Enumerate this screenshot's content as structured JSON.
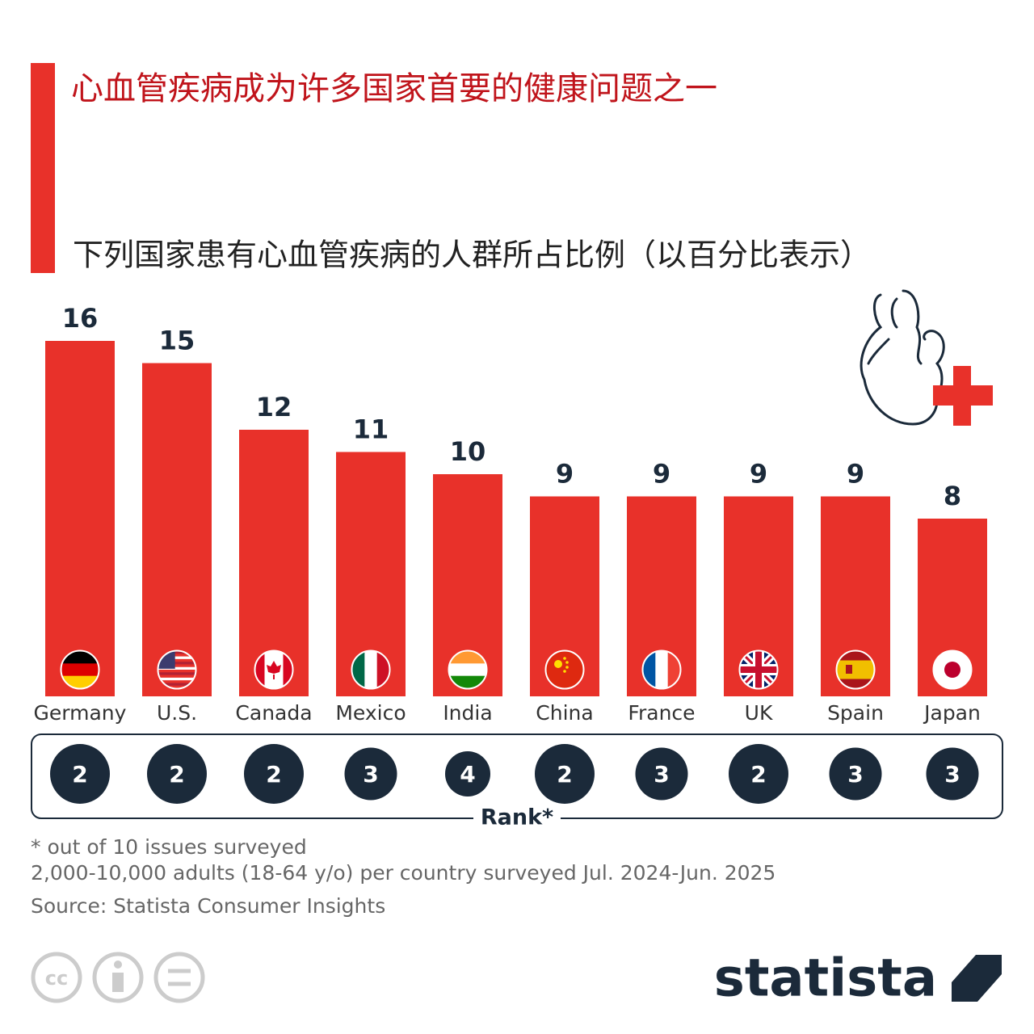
{
  "chart_data": {
    "type": "bar",
    "title": "心血管疾病成为许多国家首要的健康问题之一",
    "subtitle": "下列国家患有心血管疾病的人群所占比例（以百分比表示）",
    "categories": [
      "Germany",
      "U.S.",
      "Canada",
      "Mexico",
      "India",
      "China",
      "France",
      "UK",
      "Spain",
      "Japan"
    ],
    "values": [
      16,
      15,
      12,
      11,
      10,
      9,
      9,
      9,
      9,
      8
    ],
    "color": "#e8312a",
    "ranks": [
      2,
      2,
      2,
      3,
      4,
      2,
      3,
      2,
      3,
      3
    ],
    "rank_label": "Rank*",
    "notes": [
      "* out of 10 issues surveyed",
      "2,000-10,000 adults (18-64 y/o) per country surveyed Jul. 2024-Jun. 2025"
    ],
    "source": "Source: Statista Consumer Insights",
    "license": "cc",
    "brand": "statista"
  }
}
